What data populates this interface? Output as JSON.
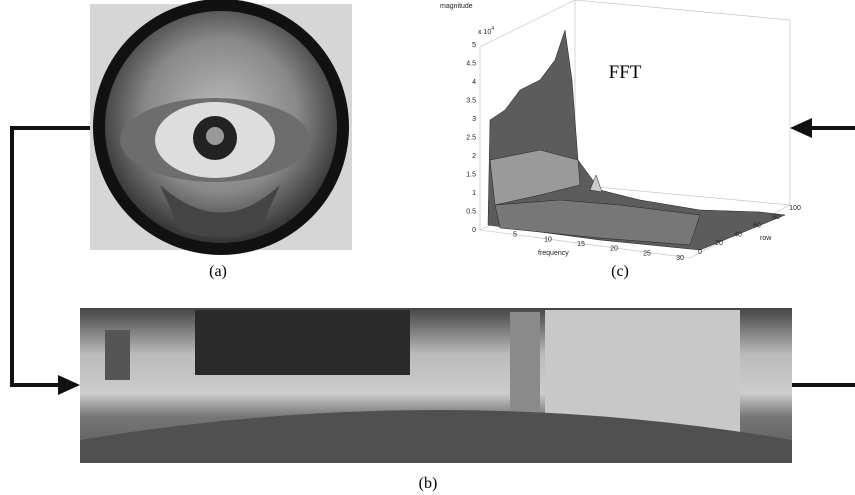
{
  "panels": {
    "a": {
      "caption": "(a)"
    },
    "b": {
      "caption": "(b)"
    },
    "c": {
      "caption": "(c)",
      "annotation": "FFT",
      "z_axis_label": "magnitude",
      "z_scale": "x 10",
      "z_scale_exponent": "4",
      "z_ticks": [
        0,
        0.5,
        1,
        1.5,
        2,
        2.5,
        3,
        3.5,
        4,
        4.5,
        5
      ],
      "x_axis_label": "frequency",
      "x_ticks": [
        5,
        10,
        15,
        20,
        25,
        30
      ],
      "y_axis_label": "row",
      "y_ticks": [
        0,
        20,
        40,
        60,
        80,
        100
      ]
    }
  }
}
